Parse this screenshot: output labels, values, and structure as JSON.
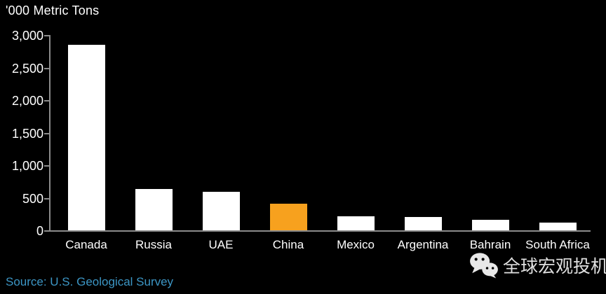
{
  "chart_data": {
    "type": "bar",
    "title": "'000 Metric Tons",
    "categories": [
      "Canada",
      "Russia",
      "UAE",
      "China",
      "Mexico",
      "Argentina",
      "Bahrain",
      "South Africa"
    ],
    "values": [
      2850,
      630,
      590,
      410,
      215,
      200,
      160,
      120
    ],
    "highlight_category": "China",
    "bar_color": "#ffffff",
    "highlight_color": "#F7A11E",
    "xlabel": "",
    "ylabel": "'000 Metric Tons",
    "ylim": [
      0,
      3000
    ],
    "ytick_values": [
      0,
      500,
      1000,
      1500,
      2000,
      2500,
      3000
    ],
    "ytick_labels": [
      "0",
      "500",
      "1,000",
      "1,500",
      "2,000",
      "2,500",
      "3,000"
    ],
    "grid": false,
    "legend_position": "none",
    "background": "#000000",
    "axis_color": "#8C8C8C",
    "text_color": "#ffffff"
  },
  "source": {
    "label": "Source: U.S. Geological Survey",
    "color": "#3C96C5"
  },
  "watermark": {
    "text": "全球宏观投机",
    "icon": "wechat-icon",
    "color": "#E0E0E0"
  }
}
